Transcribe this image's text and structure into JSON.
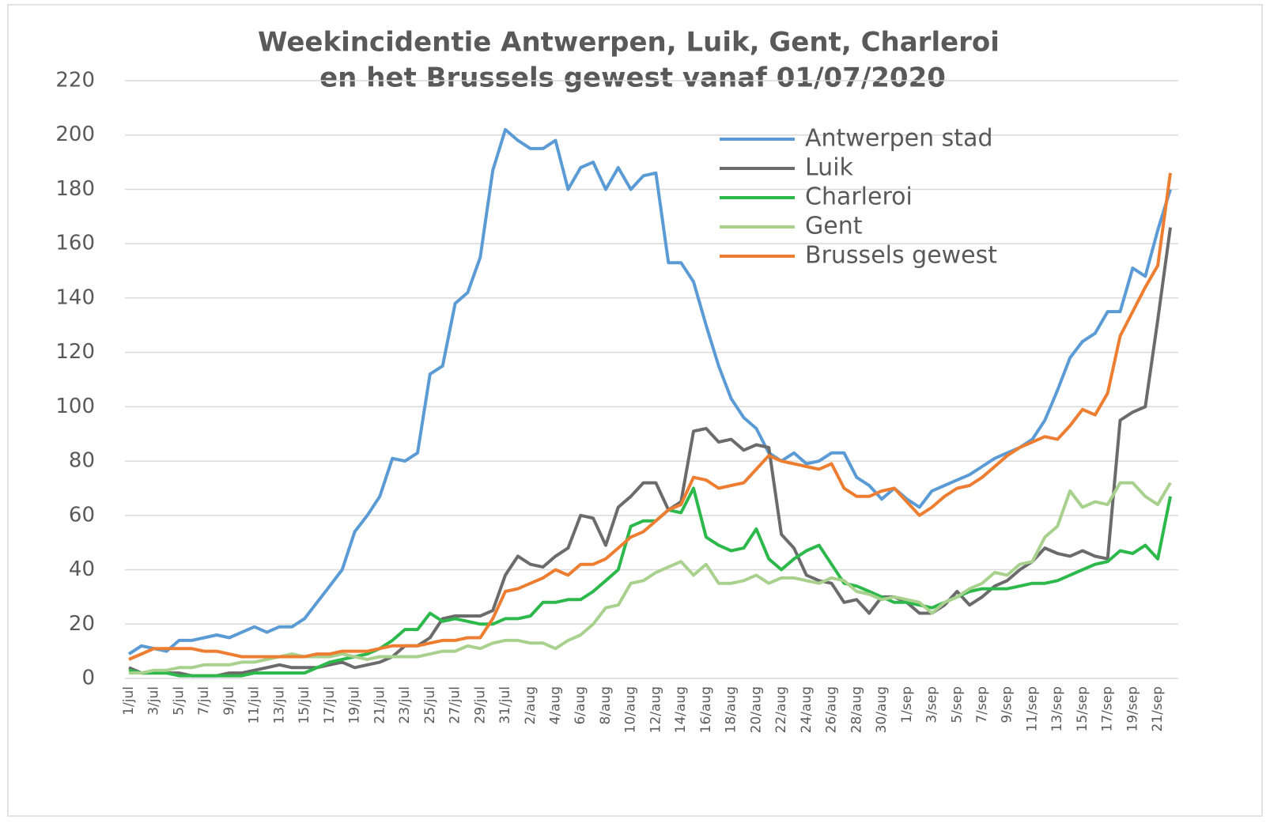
{
  "chart_data": {
    "type": "line",
    "title": [
      "Weekincidentie Antwerpen, Luik, Gent, Charleroi",
      "en het Brussels gewest vanaf 01/07/2020"
    ],
    "categories": [
      "1/jul",
      null,
      "3/jul",
      null,
      "5/jul",
      null,
      "7/jul",
      null,
      "9/jul",
      null,
      "11/jul",
      null,
      "13/jul",
      null,
      "15/jul",
      null,
      "17/jul",
      null,
      "19/jul",
      null,
      "21/jul",
      null,
      "23/jul",
      null,
      "25/jul",
      null,
      "27/jul",
      null,
      "29/jul",
      null,
      "31/jul",
      null,
      "2/aug",
      null,
      "4/aug",
      null,
      "6/aug",
      null,
      "8/aug",
      null,
      "10/aug",
      null,
      "12/aug",
      null,
      "14/aug",
      null,
      "16/aug",
      null,
      "18/aug",
      null,
      "20/aug",
      null,
      "22/aug",
      null,
      "24/aug",
      null,
      "26/aug",
      null,
      "28/aug",
      null,
      "30/aug",
      null,
      "1/sep",
      null,
      "3/sep",
      null,
      "5/sep",
      null,
      "7/sep",
      null,
      "9/sep",
      null,
      "11/sep",
      null,
      "13/sep",
      null,
      "15/sep",
      null,
      "17/sep",
      null,
      "19/sep",
      null,
      "21/sep",
      null
    ],
    "series": [
      {
        "name": "Antwerpen stad",
        "color": "#5b9bd5",
        "values": [
          9,
          12,
          11,
          10,
          14,
          14,
          15,
          16,
          15,
          17,
          19,
          17,
          19,
          19,
          22,
          28,
          34,
          40,
          54,
          60,
          67,
          81,
          80,
          83,
          112,
          115,
          138,
          142,
          155,
          187,
          202,
          198,
          195,
          195,
          198,
          180,
          188,
          190,
          180,
          188,
          180,
          185,
          186,
          153,
          153,
          146,
          130,
          115,
          103,
          96,
          92,
          83,
          80,
          83,
          79,
          80,
          83,
          83,
          74,
          71,
          66,
          70,
          66,
          63,
          69,
          71,
          73,
          75,
          78,
          81,
          83,
          85,
          88,
          95,
          106,
          118,
          124,
          127,
          135,
          135,
          151,
          148,
          165,
          180
        ]
      },
      {
        "name": "Luik",
        "color": "#6b6b6b",
        "values": [
          4,
          2,
          2,
          2,
          2,
          1,
          1,
          1,
          2,
          2,
          3,
          4,
          5,
          4,
          4,
          4,
          5,
          6,
          4,
          5,
          6,
          8,
          12,
          12,
          15,
          22,
          23,
          23,
          23,
          25,
          38,
          45,
          42,
          41,
          45,
          48,
          60,
          59,
          49,
          63,
          67,
          72,
          72,
          62,
          65,
          91,
          92,
          87,
          88,
          84,
          86,
          85,
          53,
          48,
          38,
          36,
          35,
          28,
          29,
          24,
          30,
          30,
          28,
          24,
          24,
          27,
          32,
          27,
          30,
          34,
          36,
          40,
          43,
          48,
          46,
          45,
          47,
          45,
          44,
          95,
          98,
          100,
          132,
          166
        ]
      },
      {
        "name": "Charleroi",
        "color": "#2db84b",
        "values": [
          3,
          2,
          2,
          2,
          1,
          1,
          1,
          1,
          1,
          1,
          2,
          2,
          2,
          2,
          2,
          4,
          6,
          7,
          8,
          9,
          11,
          14,
          18,
          18,
          24,
          21,
          22,
          21,
          20,
          20,
          22,
          22,
          23,
          28,
          28,
          29,
          29,
          32,
          36,
          40,
          56,
          58,
          58,
          62,
          61,
          70,
          52,
          49,
          47,
          48,
          55,
          44,
          40,
          44,
          47,
          49,
          42,
          35,
          34,
          32,
          30,
          28,
          28,
          27,
          26,
          28,
          30,
          32,
          33,
          33,
          33,
          34,
          35,
          35,
          36,
          38,
          40,
          42,
          43,
          47,
          46,
          49,
          44,
          67
        ]
      },
      {
        "name": "Gent",
        "color": "#a9d18e",
        "values": [
          2,
          2,
          3,
          3,
          4,
          4,
          5,
          5,
          5,
          6,
          6,
          7,
          8,
          9,
          8,
          8,
          8,
          9,
          8,
          7,
          8,
          8,
          8,
          8,
          9,
          10,
          10,
          12,
          11,
          13,
          14,
          14,
          13,
          13,
          11,
          14,
          16,
          20,
          26,
          27,
          35,
          36,
          39,
          41,
          43,
          38,
          42,
          35,
          35,
          36,
          38,
          35,
          37,
          37,
          36,
          35,
          37,
          36,
          32,
          31,
          29,
          30,
          29,
          28,
          24,
          28,
          30,
          33,
          35,
          39,
          38,
          42,
          43,
          52,
          56,
          69,
          63,
          65,
          64,
          72,
          72,
          67,
          64,
          72
        ]
      },
      {
        "name": "Brussels gewest",
        "color": "#ed7d31",
        "values": [
          7,
          9,
          11,
          11,
          11,
          11,
          10,
          10,
          9,
          8,
          8,
          8,
          8,
          8,
          8,
          9,
          9,
          10,
          10,
          10,
          11,
          12,
          12,
          12,
          13,
          14,
          14,
          15,
          15,
          22,
          32,
          33,
          35,
          37,
          40,
          38,
          42,
          42,
          44,
          48,
          52,
          54,
          58,
          62,
          64,
          74,
          73,
          70,
          71,
          72,
          77,
          82,
          80,
          79,
          78,
          77,
          79,
          70,
          67,
          67,
          69,
          70,
          65,
          60,
          63,
          67,
          70,
          71,
          74,
          78,
          82,
          85,
          87,
          89,
          88,
          93,
          99,
          97,
          105,
          126,
          135,
          144,
          152,
          186
        ]
      }
    ],
    "ylim": [
      0,
      220
    ],
    "yticks": [
      0,
      20,
      40,
      60,
      80,
      100,
      120,
      140,
      160,
      180,
      200,
      220
    ],
    "grid": true,
    "legend": "upper right"
  }
}
